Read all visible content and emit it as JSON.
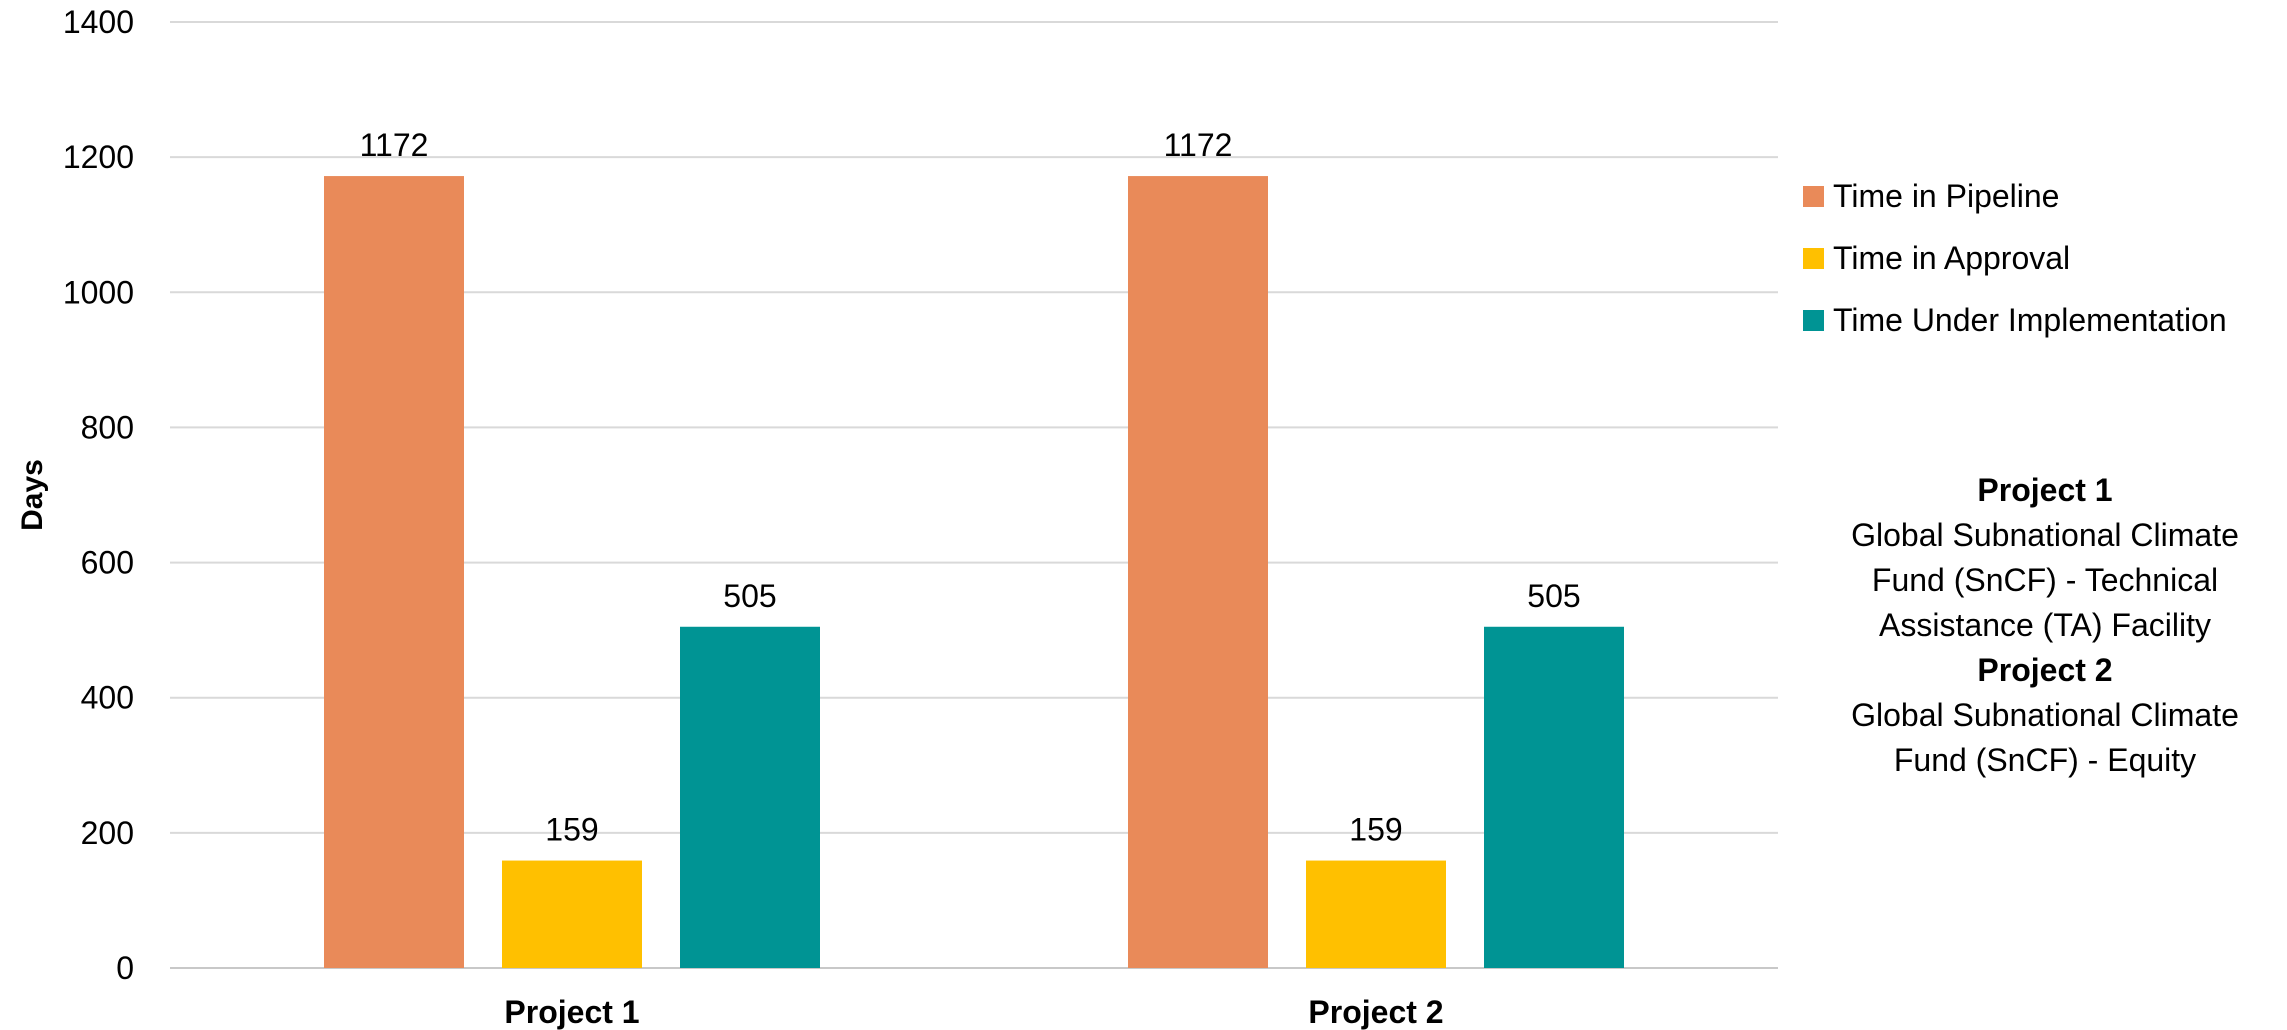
{
  "chart_data": {
    "type": "bar",
    "categories": [
      "Project 1",
      "Project 2"
    ],
    "series": [
      {
        "name": "Time in Pipeline",
        "color": "#E98A59",
        "values": [
          1172,
          1172
        ]
      },
      {
        "name": "Time in Approval",
        "color": "#FFC000",
        "values": [
          159,
          159
        ]
      },
      {
        "name": "Time Under Implementation",
        "color": "#009494",
        "values": [
          505,
          505
        ]
      }
    ],
    "ylabel": "Days",
    "xlabel": "",
    "ylim": [
      0,
      1400
    ],
    "yticks": [
      0,
      200,
      400,
      600,
      800,
      1000,
      1200,
      1400
    ],
    "grid": true,
    "legend_position": "right"
  },
  "notes": [
    {
      "title": "Project 1",
      "lines": [
        "Global Subnational Climate",
        "Fund (SnCF) - Technical",
        "Assistance (TA) Facility"
      ]
    },
    {
      "title": "Project 2",
      "lines": [
        "Global Subnational Climate",
        "Fund (SnCF) - Equity"
      ]
    }
  ]
}
